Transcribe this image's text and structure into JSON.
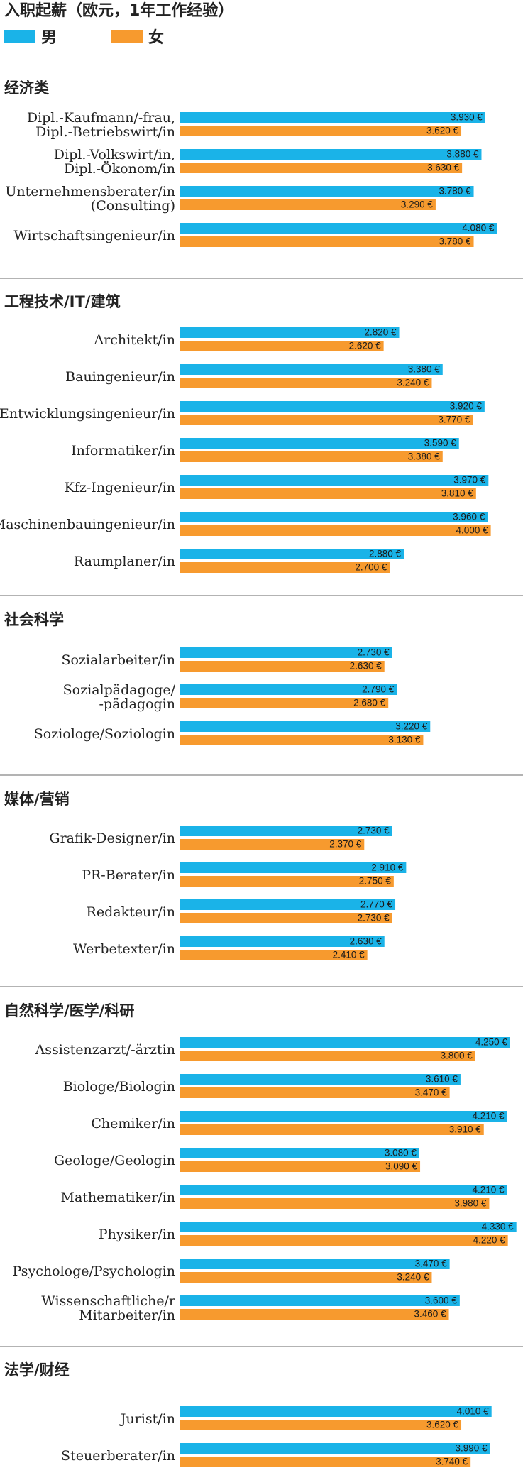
{
  "chart_data": {
    "type": "bar",
    "title": "入职起薪（欧元，1年工作经验）",
    "series": [
      {
        "name": "男",
        "color": "#1ab3e8"
      },
      {
        "name": "女",
        "color": "#f79a2e"
      }
    ],
    "value_suffix": " €",
    "groups": [
      {
        "name": "经济类",
        "items": [
          {
            "label": [
              "Dipl.-Kaufmann/-frau,",
              "Dipl.-Betriebswirt/in"
            ],
            "values": [
              3930,
              3620
            ],
            "display": [
              "3.930 €",
              "3.620 €"
            ]
          },
          {
            "label": [
              "Dipl.-Volkswirt/in,",
              "Dipl.-Ökonom/in"
            ],
            "values": [
              3880,
              3630
            ],
            "display": [
              "3.880 €",
              "3.630 €"
            ]
          },
          {
            "label": [
              "Unternehmensberater/in",
              "(Consulting)"
            ],
            "values": [
              3780,
              3290
            ],
            "display": [
              "3.780 €",
              "3.290 €"
            ]
          },
          {
            "label": [
              "Wirtschaftsingenieur/in"
            ],
            "values": [
              4080,
              3780
            ],
            "display": [
              "4.080 €",
              "3.780 €"
            ]
          }
        ]
      },
      {
        "name": "工程技术/IT/建筑",
        "items": [
          {
            "label": [
              "Architekt/in"
            ],
            "values": [
              2820,
              2620
            ],
            "display": [
              "2.820 €",
              "2.620 €"
            ]
          },
          {
            "label": [
              "Bauingenieur/in"
            ],
            "values": [
              3380,
              3240
            ],
            "display": [
              "3.380 €",
              "3.240 €"
            ]
          },
          {
            "label": [
              "Entwicklungsingenieur/in"
            ],
            "values": [
              3920,
              3770
            ],
            "display": [
              "3.920 €",
              "3.770 €"
            ]
          },
          {
            "label": [
              "Informatiker/in"
            ],
            "values": [
              3590,
              3380
            ],
            "display": [
              "3.590 €",
              "3.380 €"
            ]
          },
          {
            "label": [
              "Kfz-Ingenieur/in"
            ],
            "values": [
              3970,
              3810
            ],
            "display": [
              "3.970 €",
              "3.810 €"
            ]
          },
          {
            "label": [
              "Maschinenbauingenieur/in"
            ],
            "values": [
              3960,
              4000
            ],
            "display": [
              "3.960 €",
              "4.000 €"
            ]
          },
          {
            "label": [
              "Raumplaner/in"
            ],
            "values": [
              2880,
              2700
            ],
            "display": [
              "2.880 €",
              "2.700 €"
            ]
          }
        ]
      },
      {
        "name": "社会科学",
        "items": [
          {
            "label": [
              "Sozialarbeiter/in"
            ],
            "values": [
              2730,
              2630
            ],
            "display": [
              "2.730 €",
              "2.630 €"
            ]
          },
          {
            "label": [
              "Sozialpädagoge/",
              "-pädagogin"
            ],
            "values": [
              2790,
              2680
            ],
            "display": [
              "2.790 €",
              "2.680 €"
            ]
          },
          {
            "label": [
              "Soziologe/Soziologin"
            ],
            "values": [
              3220,
              3130
            ],
            "display": [
              "3.220 €",
              "3.130 €"
            ]
          }
        ]
      },
      {
        "name": "媒体/营销",
        "items": [
          {
            "label": [
              "Grafik-Designer/in"
            ],
            "values": [
              2730,
              2370
            ],
            "display": [
              "2.730 €",
              "2.370 €"
            ]
          },
          {
            "label": [
              "PR-Berater/in"
            ],
            "values": [
              2910,
              2750
            ],
            "display": [
              "2.910 €",
              "2.750 €"
            ]
          },
          {
            "label": [
              "Redakteur/in"
            ],
            "values": [
              2770,
              2730
            ],
            "display": [
              "2.770 €",
              "2.730 €"
            ]
          },
          {
            "label": [
              "Werbetexter/in"
            ],
            "values": [
              2630,
              2410
            ],
            "display": [
              "2.630 €",
              "2.410 €"
            ]
          }
        ]
      },
      {
        "name": "自然科学/医学/科研",
        "items": [
          {
            "label": [
              "Assistenzarzt/-ärztin"
            ],
            "values": [
              4250,
              3800
            ],
            "display": [
              "4.250 €",
              "3.800 €"
            ]
          },
          {
            "label": [
              "Biologe/Biologin"
            ],
            "values": [
              3610,
              3470
            ],
            "display": [
              "3.610 €",
              "3.470 €"
            ]
          },
          {
            "label": [
              "Chemiker/in"
            ],
            "values": [
              4210,
              3910
            ],
            "display": [
              "4.210 €",
              "3.910 €"
            ]
          },
          {
            "label": [
              "Geologe/Geologin"
            ],
            "values": [
              3080,
              3090
            ],
            "display": [
              "3.080 €",
              "3.090 €"
            ]
          },
          {
            "label": [
              "Mathematiker/in"
            ],
            "values": [
              4210,
              3980
            ],
            "display": [
              "4.210 €",
              "3.980 €"
            ]
          },
          {
            "label": [
              "Physiker/in"
            ],
            "values": [
              4330,
              4220
            ],
            "display": [
              "4.330 €",
              "4.220 €"
            ]
          },
          {
            "label": [
              "Psychologe/Psychologin"
            ],
            "values": [
              3470,
              3240
            ],
            "display": [
              "3.470 €",
              "3.240 €"
            ]
          },
          {
            "label": [
              "Wissenschaftliche/r",
              "Mitarbeiter/in"
            ],
            "values": [
              3600,
              3460
            ],
            "display": [
              "3.600 €",
              "3.460 €"
            ]
          }
        ]
      },
      {
        "name": "法学/财经",
        "items": [
          {
            "label": [
              "Jurist/in"
            ],
            "values": [
              4010,
              3620
            ],
            "display": [
              "4.010 €",
              "3.620 €"
            ]
          },
          {
            "label": [
              "Steuerberater/in"
            ],
            "values": [
              3990,
              3740
            ],
            "display": [
              "3.990 €",
              "3.740 €"
            ]
          }
        ]
      }
    ]
  }
}
